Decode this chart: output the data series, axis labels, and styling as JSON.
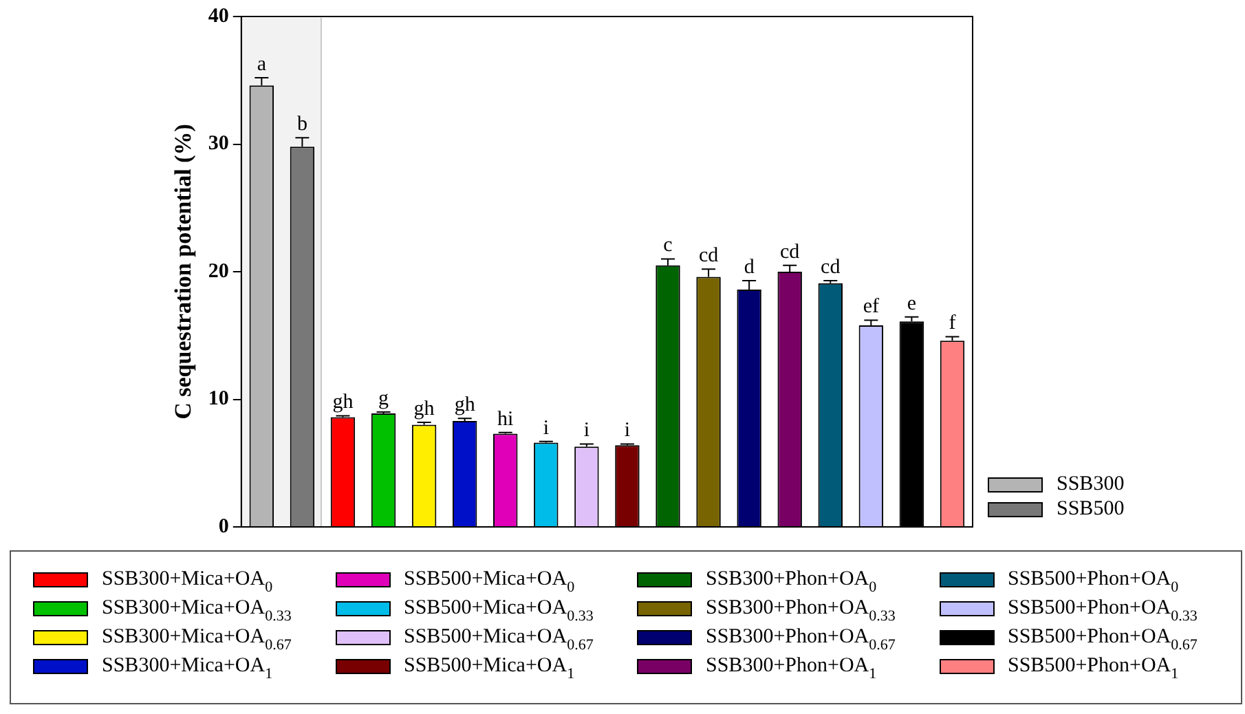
{
  "chart_data": {
    "type": "bar",
    "ylabel": "C sequestration potential (%)",
    "stacked": true,
    "categories": [
      null,
      null,
      null,
      null,
      null,
      null,
      null,
      null,
      null,
      null,
      null,
      null,
      null,
      null,
      null,
      null,
      null,
      null
    ],
    "ylim": [
      0,
      40
    ],
    "yticks": [
      0,
      10,
      20,
      30,
      40
    ],
    "grid": false,
    "legend": "bottom",
    "tick_labels": "y",
    "series": [
      {
        "name": "SSB300",
        "color": "#b4b4b4",
        "values": [
          34.6,
          null,
          null,
          null,
          null,
          null,
          null,
          null,
          null,
          null,
          null,
          null,
          null,
          null,
          null,
          null,
          null,
          null
        ],
        "errors": [
          0.6,
          null,
          null,
          null,
          null,
          null,
          null,
          null,
          null,
          null,
          null,
          null,
          null,
          null,
          null,
          null,
          null,
          null
        ],
        "value_labels": [
          "a",
          null,
          null,
          null,
          null,
          null,
          null,
          null,
          null,
          null,
          null,
          null,
          null,
          null,
          null,
          null,
          null,
          null
        ]
      },
      {
        "name": "SSB500",
        "color": "#787878",
        "values": [
          null,
          29.8,
          null,
          null,
          null,
          null,
          null,
          null,
          null,
          null,
          null,
          null,
          null,
          null,
          null,
          null,
          null,
          null
        ],
        "errors": [
          null,
          0.7,
          null,
          null,
          null,
          null,
          null,
          null,
          null,
          null,
          null,
          null,
          null,
          null,
          null,
          null,
          null,
          null
        ],
        "value_labels": [
          null,
          "b",
          null,
          null,
          null,
          null,
          null,
          null,
          null,
          null,
          null,
          null,
          null,
          null,
          null,
          null,
          null,
          null
        ]
      },
      {
        "name": "SSB300+Mica+OA$_{0}$",
        "color": "#ff0000",
        "values": [
          null,
          null,
          8.6,
          null,
          null,
          null,
          null,
          null,
          null,
          null,
          null,
          null,
          null,
          null,
          null,
          null,
          null,
          null
        ],
        "errors": [
          null,
          null,
          0.1,
          null,
          null,
          null,
          null,
          null,
          null,
          null,
          null,
          null,
          null,
          null,
          null,
          null,
          null,
          null
        ],
        "value_labels": [
          null,
          null,
          "gh",
          null,
          null,
          null,
          null,
          null,
          null,
          null,
          null,
          null,
          null,
          null,
          null,
          null,
          null,
          null
        ]
      },
      {
        "name": "SSB300+Mica+OA$_{0.33}$",
        "color": "#00c000",
        "values": [
          null,
          null,
          null,
          8.9,
          null,
          null,
          null,
          null,
          null,
          null,
          null,
          null,
          null,
          null,
          null,
          null,
          null,
          null
        ],
        "errors": [
          null,
          null,
          null,
          0.1,
          null,
          null,
          null,
          null,
          null,
          null,
          null,
          null,
          null,
          null,
          null,
          null,
          null,
          null
        ],
        "value_labels": [
          null,
          null,
          null,
          "g",
          null,
          null,
          null,
          null,
          null,
          null,
          null,
          null,
          null,
          null,
          null,
          null,
          null,
          null
        ]
      },
      {
        "name": "SSB300+Mica+OA$_{0.67}$",
        "color": "#ffee00",
        "values": [
          null,
          null,
          null,
          null,
          8.0,
          null,
          null,
          null,
          null,
          null,
          null,
          null,
          null,
          null,
          null,
          null,
          null,
          null
        ],
        "errors": [
          null,
          null,
          null,
          null,
          0.2,
          null,
          null,
          null,
          null,
          null,
          null,
          null,
          null,
          null,
          null,
          null,
          null,
          null
        ],
        "value_labels": [
          null,
          null,
          null,
          null,
          "gh",
          null,
          null,
          null,
          null,
          null,
          null,
          null,
          null,
          null,
          null,
          null,
          null,
          null
        ]
      },
      {
        "name": "SSB300+Mica+OA$_{1}$",
        "color": "#0010c8",
        "values": [
          null,
          null,
          null,
          null,
          null,
          8.3,
          null,
          null,
          null,
          null,
          null,
          null,
          null,
          null,
          null,
          null,
          null,
          null
        ],
        "errors": [
          null,
          null,
          null,
          null,
          null,
          0.2,
          null,
          null,
          null,
          null,
          null,
          null,
          null,
          null,
          null,
          null,
          null,
          null
        ],
        "value_labels": [
          null,
          null,
          null,
          null,
          null,
          "gh",
          null,
          null,
          null,
          null,
          null,
          null,
          null,
          null,
          null,
          null,
          null,
          null
        ]
      },
      {
        "name": "SSB500+Mica+OA$_{0}$",
        "color": "#e000b8",
        "values": [
          null,
          null,
          null,
          null,
          null,
          null,
          7.3,
          null,
          null,
          null,
          null,
          null,
          null,
          null,
          null,
          null,
          null,
          null
        ],
        "errors": [
          null,
          null,
          null,
          null,
          null,
          null,
          0.1,
          null,
          null,
          null,
          null,
          null,
          null,
          null,
          null,
          null,
          null,
          null
        ],
        "value_labels": [
          null,
          null,
          null,
          null,
          null,
          null,
          "hi",
          null,
          null,
          null,
          null,
          null,
          null,
          null,
          null,
          null,
          null,
          null
        ]
      },
      {
        "name": "SSB500+Mica+OA$_{0.33}$",
        "color": "#00bce8",
        "values": [
          null,
          null,
          null,
          null,
          null,
          null,
          null,
          6.6,
          null,
          null,
          null,
          null,
          null,
          null,
          null,
          null,
          null,
          null
        ],
        "errors": [
          null,
          null,
          null,
          null,
          null,
          null,
          null,
          0.1,
          null,
          null,
          null,
          null,
          null,
          null,
          null,
          null,
          null,
          null
        ],
        "value_labels": [
          null,
          null,
          null,
          null,
          null,
          null,
          null,
          "i",
          null,
          null,
          null,
          null,
          null,
          null,
          null,
          null,
          null,
          null
        ]
      },
      {
        "name": "SSB500+Mica+OA$_{0.67}$",
        "color": "#e0c0f8",
        "values": [
          null,
          null,
          null,
          null,
          null,
          null,
          null,
          null,
          6.3,
          null,
          null,
          null,
          null,
          null,
          null,
          null,
          null,
          null
        ],
        "errors": [
          null,
          null,
          null,
          null,
          null,
          null,
          null,
          null,
          0.2,
          null,
          null,
          null,
          null,
          null,
          null,
          null,
          null,
          null
        ],
        "value_labels": [
          null,
          null,
          null,
          null,
          null,
          null,
          null,
          null,
          "i",
          null,
          null,
          null,
          null,
          null,
          null,
          null,
          null,
          null
        ]
      },
      {
        "name": "SSB500+Mica+OA$_{1}$",
        "color": "#780000",
        "values": [
          null,
          null,
          null,
          null,
          null,
          null,
          null,
          null,
          null,
          6.4,
          null,
          null,
          null,
          null,
          null,
          null,
          null,
          null
        ],
        "errors": [
          null,
          null,
          null,
          null,
          null,
          null,
          null,
          null,
          null,
          0.1,
          null,
          null,
          null,
          null,
          null,
          null,
          null,
          null
        ],
        "value_labels": [
          null,
          null,
          null,
          null,
          null,
          null,
          null,
          null,
          null,
          "i",
          null,
          null,
          null,
          null,
          null,
          null,
          null,
          null
        ]
      },
      {
        "name": "SSB300+Phon+OA$_{0}$",
        "color": "#006400",
        "values": [
          null,
          null,
          null,
          null,
          null,
          null,
          null,
          null,
          null,
          null,
          20.5,
          null,
          null,
          null,
          null,
          null,
          null,
          null
        ],
        "errors": [
          null,
          null,
          null,
          null,
          null,
          null,
          null,
          null,
          null,
          null,
          0.5,
          null,
          null,
          null,
          null,
          null,
          null,
          null
        ],
        "value_labels": [
          null,
          null,
          null,
          null,
          null,
          null,
          null,
          null,
          null,
          null,
          "c",
          null,
          null,
          null,
          null,
          null,
          null,
          null
        ]
      },
      {
        "name": "SSB300+Phon+OA$_{0.33}$",
        "color": "#786400",
        "values": [
          null,
          null,
          null,
          null,
          null,
          null,
          null,
          null,
          null,
          null,
          null,
          19.6,
          null,
          null,
          null,
          null,
          null,
          null
        ],
        "errors": [
          null,
          null,
          null,
          null,
          null,
          null,
          null,
          null,
          null,
          null,
          null,
          0.6,
          null,
          null,
          null,
          null,
          null,
          null
        ],
        "value_labels": [
          null,
          null,
          null,
          null,
          null,
          null,
          null,
          null,
          null,
          null,
          null,
          "cd",
          null,
          null,
          null,
          null,
          null,
          null
        ]
      },
      {
        "name": "SSB300+Phon+OA$_{0.67}$",
        "color": "#000070",
        "values": [
          null,
          null,
          null,
          null,
          null,
          null,
          null,
          null,
          null,
          null,
          null,
          null,
          18.6,
          null,
          null,
          null,
          null,
          null
        ],
        "errors": [
          null,
          null,
          null,
          null,
          null,
          null,
          null,
          null,
          null,
          null,
          null,
          null,
          0.7,
          null,
          null,
          null,
          null,
          null
        ],
        "value_labels": [
          null,
          null,
          null,
          null,
          null,
          null,
          null,
          null,
          null,
          null,
          null,
          null,
          "d",
          null,
          null,
          null,
          null,
          null
        ]
      },
      {
        "name": "SSB300+Phon+OA$_{1}$",
        "color": "#780064",
        "values": [
          null,
          null,
          null,
          null,
          null,
          null,
          null,
          null,
          null,
          null,
          null,
          null,
          null,
          20.0,
          null,
          null,
          null,
          null
        ],
        "errors": [
          null,
          null,
          null,
          null,
          null,
          null,
          null,
          null,
          null,
          null,
          null,
          null,
          null,
          0.5,
          null,
          null,
          null,
          null
        ],
        "value_labels": [
          null,
          null,
          null,
          null,
          null,
          null,
          null,
          null,
          null,
          null,
          null,
          null,
          null,
          "cd",
          null,
          null,
          null,
          null
        ]
      },
      {
        "name": "SSB500+Phon+OA$_{0}$",
        "color": "#005a78",
        "values": [
          null,
          null,
          null,
          null,
          null,
          null,
          null,
          null,
          null,
          null,
          null,
          null,
          null,
          null,
          19.1,
          null,
          null,
          null
        ],
        "errors": [
          null,
          null,
          null,
          null,
          null,
          null,
          null,
          null,
          null,
          null,
          null,
          null,
          null,
          null,
          0.2,
          null,
          null,
          null
        ],
        "value_labels": [
          null,
          null,
          null,
          null,
          null,
          null,
          null,
          null,
          null,
          null,
          null,
          null,
          null,
          null,
          "cd",
          null,
          null,
          null
        ]
      },
      {
        "name": "SSB500+Phon+OA$_{0.33}$",
        "color": "#c0c0ff",
        "values": [
          null,
          null,
          null,
          null,
          null,
          null,
          null,
          null,
          null,
          null,
          null,
          null,
          null,
          null,
          null,
          15.8,
          null,
          null
        ],
        "errors": [
          null,
          null,
          null,
          null,
          null,
          null,
          null,
          null,
          null,
          null,
          null,
          null,
          null,
          null,
          null,
          0.4,
          null,
          null
        ],
        "value_labels": [
          null,
          null,
          null,
          null,
          null,
          null,
          null,
          null,
          null,
          null,
          null,
          null,
          null,
          null,
          null,
          "ef",
          null,
          null
        ]
      },
      {
        "name": "SSB500+Phon+OA$_{0.67}$",
        "color": "#000000",
        "values": [
          null,
          null,
          null,
          null,
          null,
          null,
          null,
          null,
          null,
          null,
          null,
          null,
          null,
          null,
          null,
          null,
          16.1,
          null
        ],
        "errors": [
          null,
          null,
          null,
          null,
          null,
          null,
          null,
          null,
          null,
          null,
          null,
          null,
          null,
          null,
          null,
          null,
          0.35,
          null
        ],
        "value_labels": [
          null,
          null,
          null,
          null,
          null,
          null,
          null,
          null,
          null,
          null,
          null,
          null,
          null,
          null,
          null,
          null,
          "e",
          null
        ]
      },
      {
        "name": "SSB500+Phon+OA$_{1}$",
        "color": "#ff8080",
        "values": [
          null,
          null,
          null,
          null,
          null,
          null,
          null,
          null,
          null,
          null,
          null,
          null,
          null,
          null,
          null,
          null,
          null,
          14.6
        ],
        "errors": [
          null,
          null,
          null,
          null,
          null,
          null,
          null,
          null,
          null,
          null,
          null,
          null,
          null,
          null,
          null,
          null,
          null,
          0.3
        ],
        "value_labels": [
          null,
          null,
          null,
          null,
          null,
          null,
          null,
          null,
          null,
          null,
          null,
          null,
          null,
          null,
          null,
          null,
          null,
          "f"
        ]
      }
    ]
  }
}
